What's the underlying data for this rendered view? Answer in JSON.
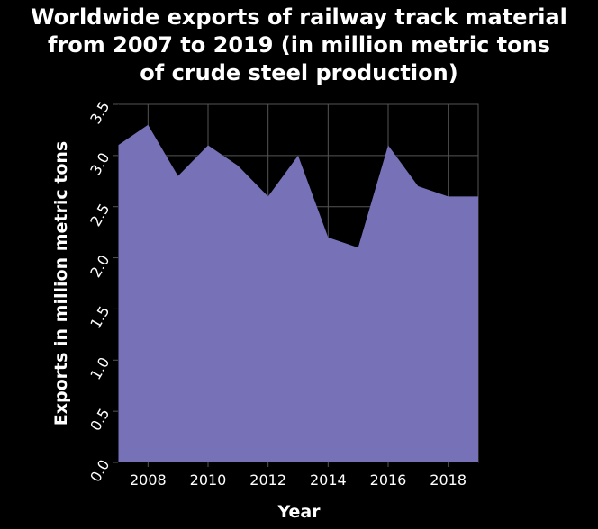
{
  "chart_data": {
    "type": "area",
    "title_lines": [
      "Worldwide exports of railway track material",
      "from 2007 to 2019 (in million metric tons",
      "of crude steel production)"
    ],
    "xlabel": "Year",
    "ylabel": "Exports in million metric tons",
    "x": [
      2007,
      2008,
      2009,
      2010,
      2011,
      2012,
      2013,
      2014,
      2015,
      2016,
      2017,
      2018,
      2019
    ],
    "values": [
      3.1,
      3.3,
      2.8,
      3.1,
      2.9,
      2.6,
      3.0,
      2.2,
      2.1,
      3.1,
      2.7,
      2.6,
      2.6
    ],
    "xlim": [
      2007,
      2019
    ],
    "ylim": [
      0,
      3.5
    ],
    "x_ticks": [
      "2008",
      "2010",
      "2012",
      "2014",
      "2016",
      "2018"
    ],
    "y_ticks": [
      "0.0",
      "0.5",
      "1.0",
      "1.5",
      "2.0",
      "2.5",
      "3.0",
      "3.5"
    ],
    "grid": true,
    "fill_color": "#7772b7",
    "background_color": "#000000",
    "grid_color": "#555555",
    "text_color": "#ffffff"
  }
}
